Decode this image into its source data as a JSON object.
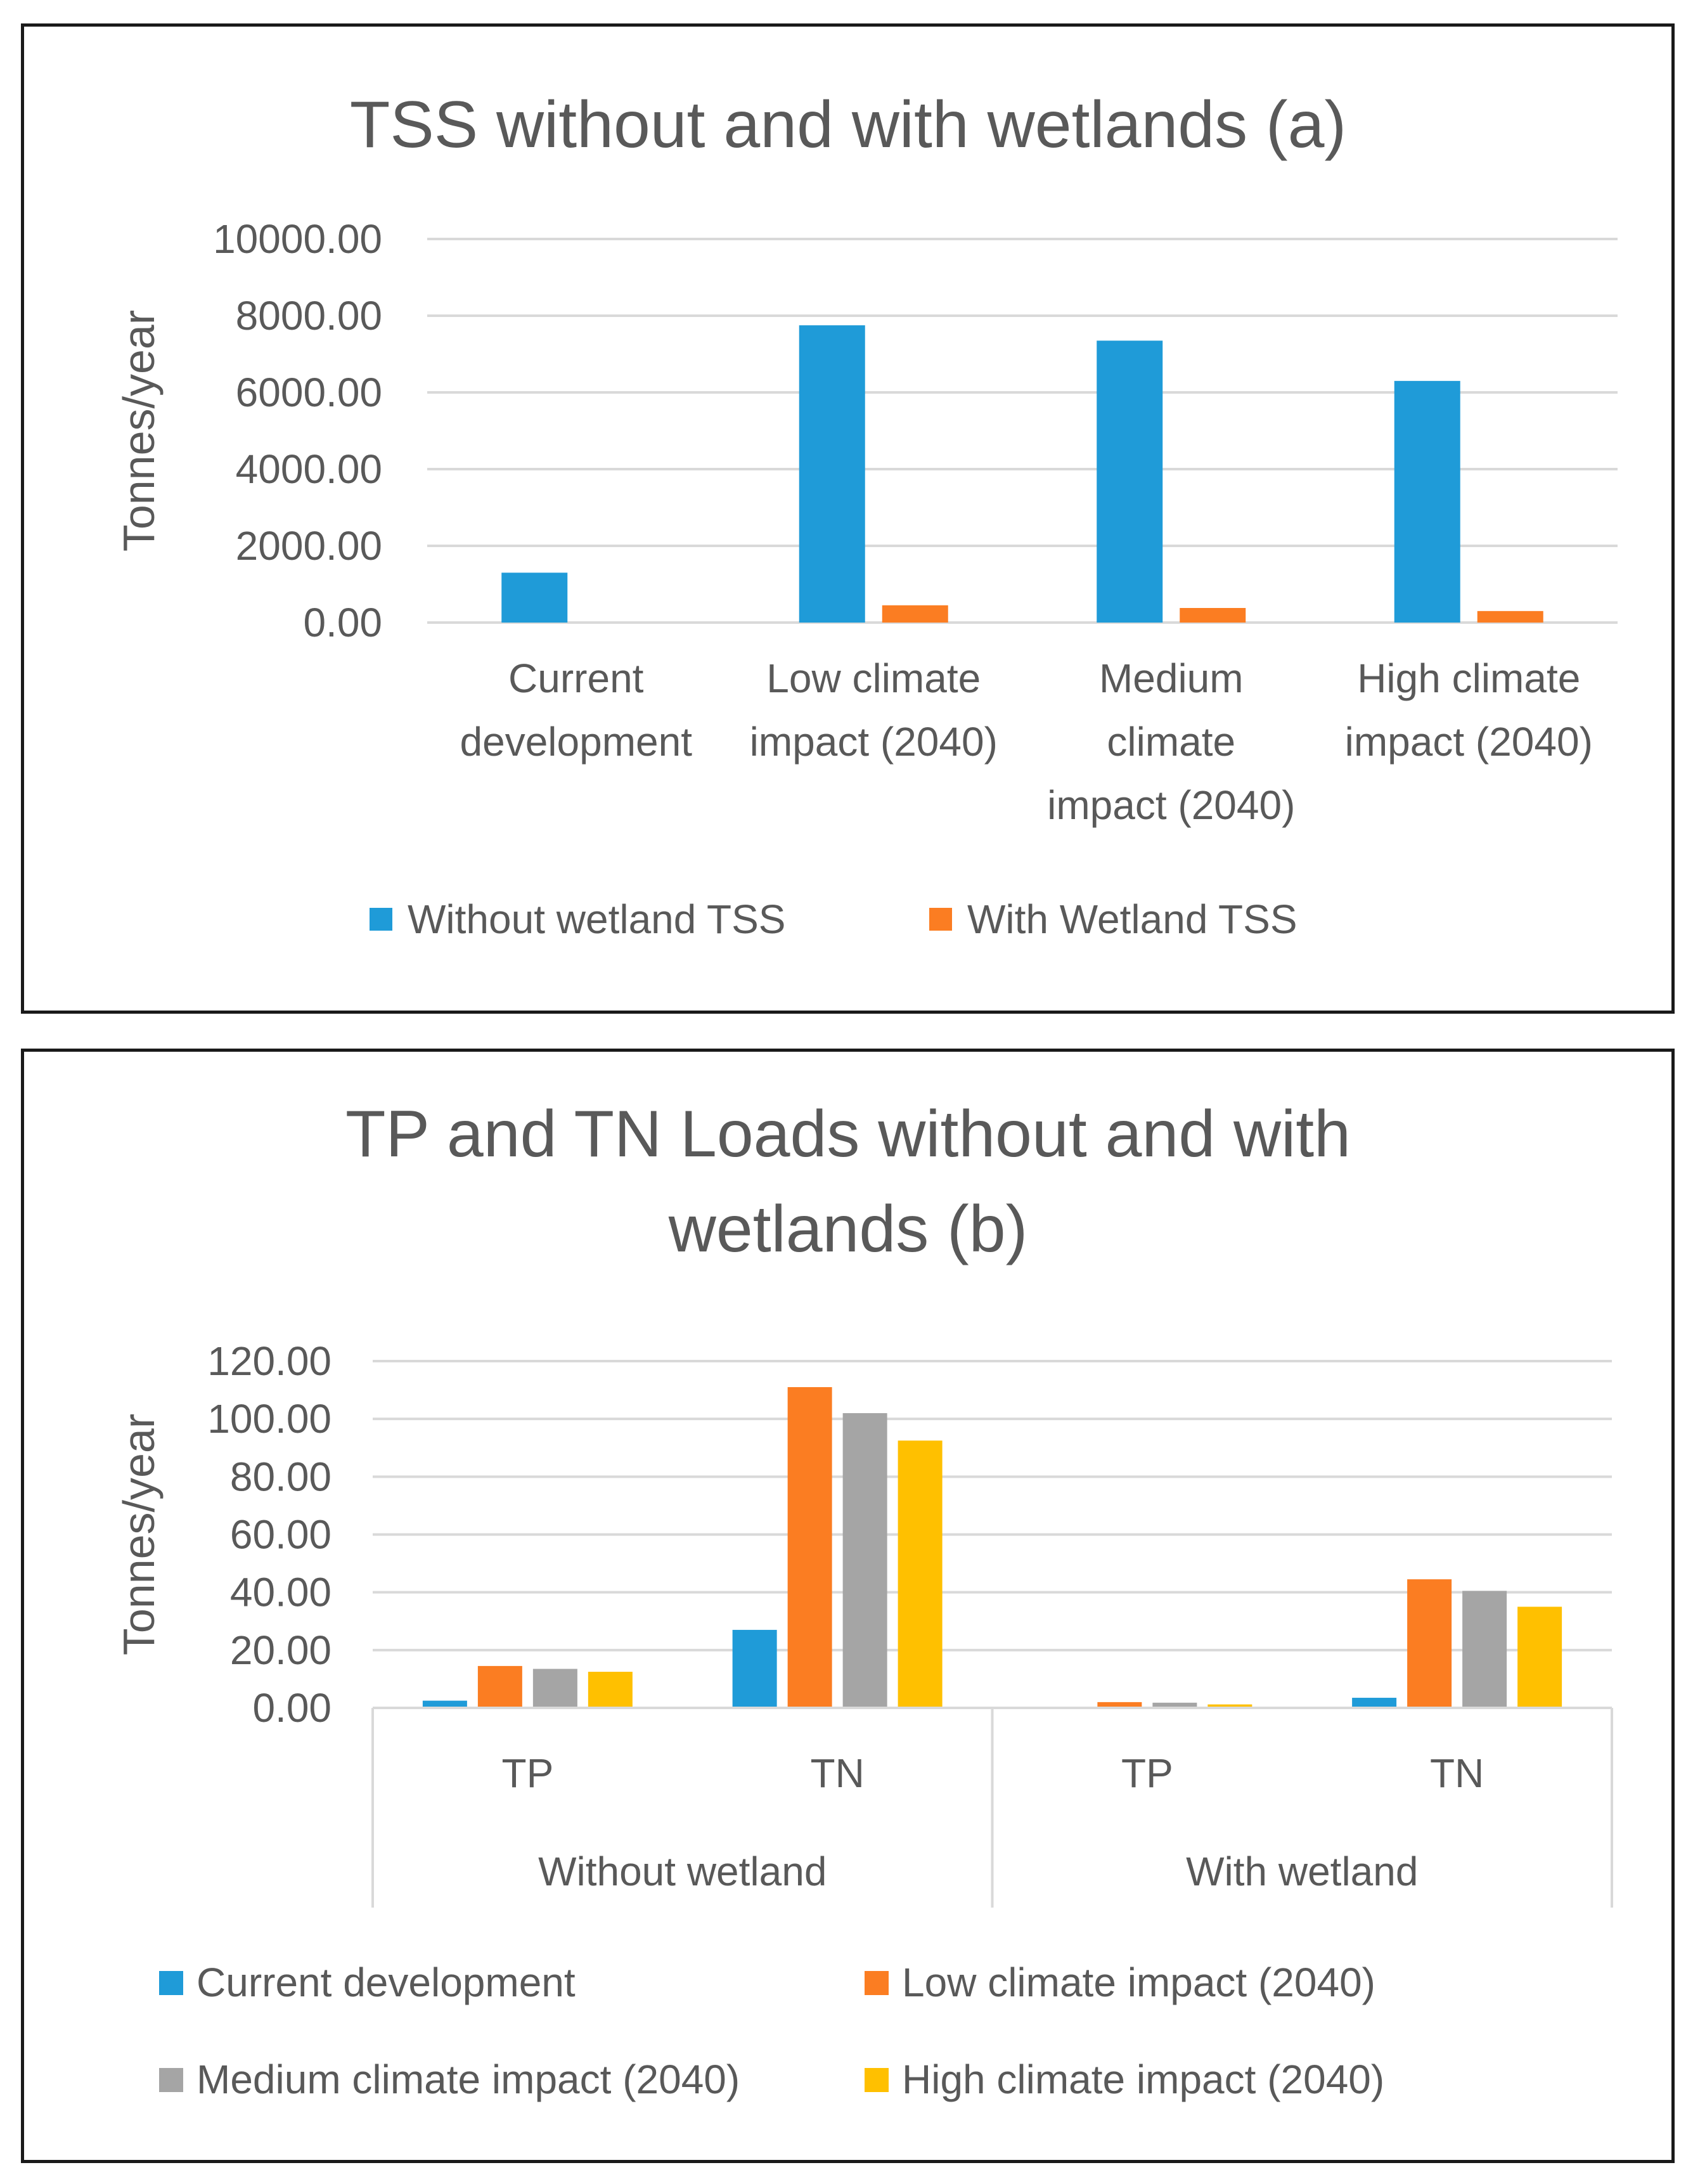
{
  "chart_data": [
    {
      "type": "bar",
      "title": "TSS without and with wetlands (a)",
      "ylabel": "Tonnes/year",
      "xlabel": "",
      "ylim": [
        0,
        10000
      ],
      "yticks": [
        "0.00",
        "2000.00",
        "4000.00",
        "6000.00",
        "8000.00",
        "10000.00"
      ],
      "categories": [
        [
          "Current",
          "development"
        ],
        [
          "Low climate",
          "impact (2040)"
        ],
        [
          "Medium",
          "climate",
          "impact (2040)"
        ],
        [
          "High climate",
          "impact (2040)"
        ]
      ],
      "series": [
        {
          "name": "Without wetland TSS",
          "color": "#1f9bd8",
          "values": [
            1300,
            7750,
            7350,
            6300
          ]
        },
        {
          "name": "With Wetland TSS",
          "color": "#fb7d22",
          "values": [
            0,
            450,
            380,
            300
          ]
        }
      ],
      "legend": "bottom",
      "grid": true
    },
    {
      "type": "bar",
      "title": [
        "TP and TN Loads without and with",
        "wetlands (b)"
      ],
      "ylabel": "Tonnes/year",
      "xlabel": "",
      "ylim": [
        0,
        120
      ],
      "yticks": [
        "0.00",
        "20.00",
        "40.00",
        "60.00",
        "80.00",
        "100.00",
        "120.00"
      ],
      "groups": [
        {
          "label": "Without wetland",
          "categories": [
            "TP",
            "TN"
          ]
        },
        {
          "label": "With wetland",
          "categories": [
            "TP",
            "TN"
          ]
        }
      ],
      "series": [
        {
          "name": "Current development",
          "color": "#1f9bd8",
          "values": [
            2.5,
            27,
            0,
            3.5
          ]
        },
        {
          "name": "Low climate impact (2040)",
          "color": "#fb7d22",
          "values": [
            14.5,
            111,
            2,
            44.5
          ]
        },
        {
          "name": "Medium climate impact (2040)",
          "color": "#a5a5a5",
          "values": [
            13.5,
            102,
            1.8,
            40.5
          ]
        },
        {
          "name": "High climate impact (2040)",
          "color": "#ffc000",
          "values": [
            12.5,
            92.5,
            1.2,
            35
          ]
        }
      ],
      "legend": "bottom",
      "grid": true
    }
  ]
}
